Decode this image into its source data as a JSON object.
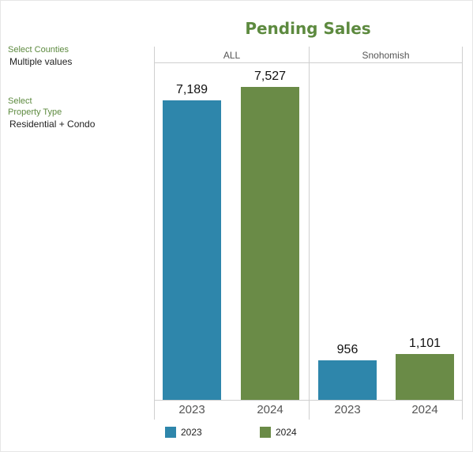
{
  "colors": {
    "series_2023": "#2e86ab",
    "series_2024": "#6a8b47",
    "accent": "#5d8a3f"
  },
  "filters": [
    {
      "label": "Select Counties",
      "value": "Multiple values"
    },
    {
      "label": "Select\nProperty Type",
      "value": "Residential + Condo"
    }
  ],
  "chart_data": {
    "type": "bar",
    "title": "Pending Sales",
    "panels": [
      "ALL",
      "Snohomish"
    ],
    "categories": [
      "2023",
      "2024"
    ],
    "series": [
      {
        "name": "2023",
        "values": [
          7189,
          956
        ]
      },
      {
        "name": "2024",
        "values": [
          7527,
          1101
        ]
      }
    ],
    "data_labels": {
      "ALL": [
        "7,189",
        "7,527"
      ],
      "Snohomish": [
        "956",
        "1,101"
      ]
    },
    "ylim": [
      0,
      7900
    ],
    "legend_placement": "bottom",
    "grid": false
  }
}
